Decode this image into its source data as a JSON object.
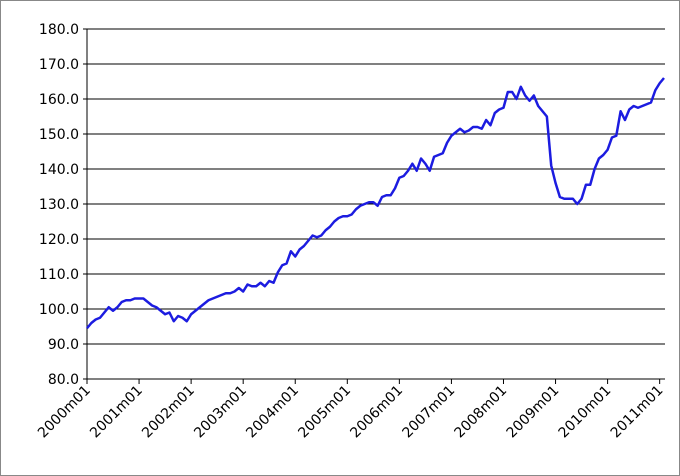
{
  "chart_data": {
    "type": "line",
    "categories": [
      "2000m01",
      null,
      null,
      null,
      null,
      null,
      null,
      null,
      null,
      null,
      null,
      null,
      "2001m01",
      null,
      null,
      null,
      null,
      null,
      null,
      null,
      null,
      null,
      null,
      null,
      "2002m01",
      null,
      null,
      null,
      null,
      null,
      null,
      null,
      null,
      null,
      null,
      null,
      "2003m01",
      null,
      null,
      null,
      null,
      null,
      null,
      null,
      null,
      null,
      null,
      null,
      "2004m01",
      null,
      null,
      null,
      null,
      null,
      null,
      null,
      null,
      null,
      null,
      null,
      "2005m01",
      null,
      null,
      null,
      null,
      null,
      null,
      null,
      null,
      null,
      null,
      null,
      "2006m01",
      null,
      null,
      null,
      null,
      null,
      null,
      null,
      null,
      null,
      null,
      null,
      "2007m01",
      null,
      null,
      null,
      null,
      null,
      null,
      null,
      null,
      null,
      null,
      null,
      "2008m01",
      null,
      null,
      null,
      null,
      null,
      null,
      null,
      null,
      null,
      null,
      null,
      "2009m01",
      null,
      null,
      null,
      null,
      null,
      null,
      null,
      null,
      null,
      null,
      null,
      "2010m01",
      null,
      null,
      null,
      null,
      null,
      null,
      null,
      null,
      null,
      null,
      null,
      "2011m01",
      null
    ],
    "values": [
      94.5,
      96,
      97,
      97.5,
      99,
      100.5,
      99.5,
      100.5,
      102,
      102.5,
      102.5,
      103,
      103,
      103,
      102,
      101,
      100.5,
      99.5,
      98.5,
      99,
      96.5,
      98,
      97.5,
      96.5,
      98.5,
      99.5,
      100.5,
      101.5,
      102.5,
      103,
      103.5,
      104,
      104.5,
      104.5,
      105,
      106,
      105,
      107,
      106.5,
      106.5,
      107.5,
      106.5,
      108,
      107.5,
      110.5,
      112.5,
      113,
      116.5,
      115,
      117,
      118,
      119.5,
      121,
      120.5,
      121,
      122.5,
      123.5,
      125,
      126,
      126.5,
      126.5,
      127,
      128.5,
      129.5,
      130,
      130.5,
      130.5,
      129.5,
      132,
      132.5,
      132.5,
      134.5,
      137.5,
      138,
      139.5,
      141.5,
      139.5,
      143,
      141.5,
      139.5,
      143.5,
      144,
      144.5,
      147.5,
      149.5,
      150.5,
      151.5,
      150.5,
      151,
      152,
      152,
      151.5,
      154,
      152.5,
      156,
      157,
      157.5,
      162,
      162,
      160,
      163.5,
      161,
      159.5,
      161,
      158,
      156.5,
      155,
      141,
      136,
      132,
      131.5,
      131.5,
      131.5,
      130,
      131.5,
      135.5,
      135.5,
      140,
      143,
      144,
      145.5,
      149,
      149.5,
      156.5,
      154,
      157,
      158,
      157.5,
      158,
      158.5,
      159,
      162.5,
      164.5,
      166
    ],
    "color": "#1c1ce0",
    "ylim": [
      80,
      180
    ],
    "yticks": [
      {
        "value": 80,
        "label": "80.0"
      },
      {
        "value": 90,
        "label": "90.0"
      },
      {
        "value": 100,
        "label": "100.0"
      },
      {
        "value": 110,
        "label": "110.0"
      },
      {
        "value": 120,
        "label": "120.0"
      },
      {
        "value": 130,
        "label": "130.0"
      },
      {
        "value": 140,
        "label": "140.0"
      },
      {
        "value": 150,
        "label": "150.0"
      },
      {
        "value": 160,
        "label": "160.0"
      },
      {
        "value": 170,
        "label": "170.0"
      },
      {
        "value": 180,
        "label": "180.0"
      }
    ],
    "grid": true
  }
}
